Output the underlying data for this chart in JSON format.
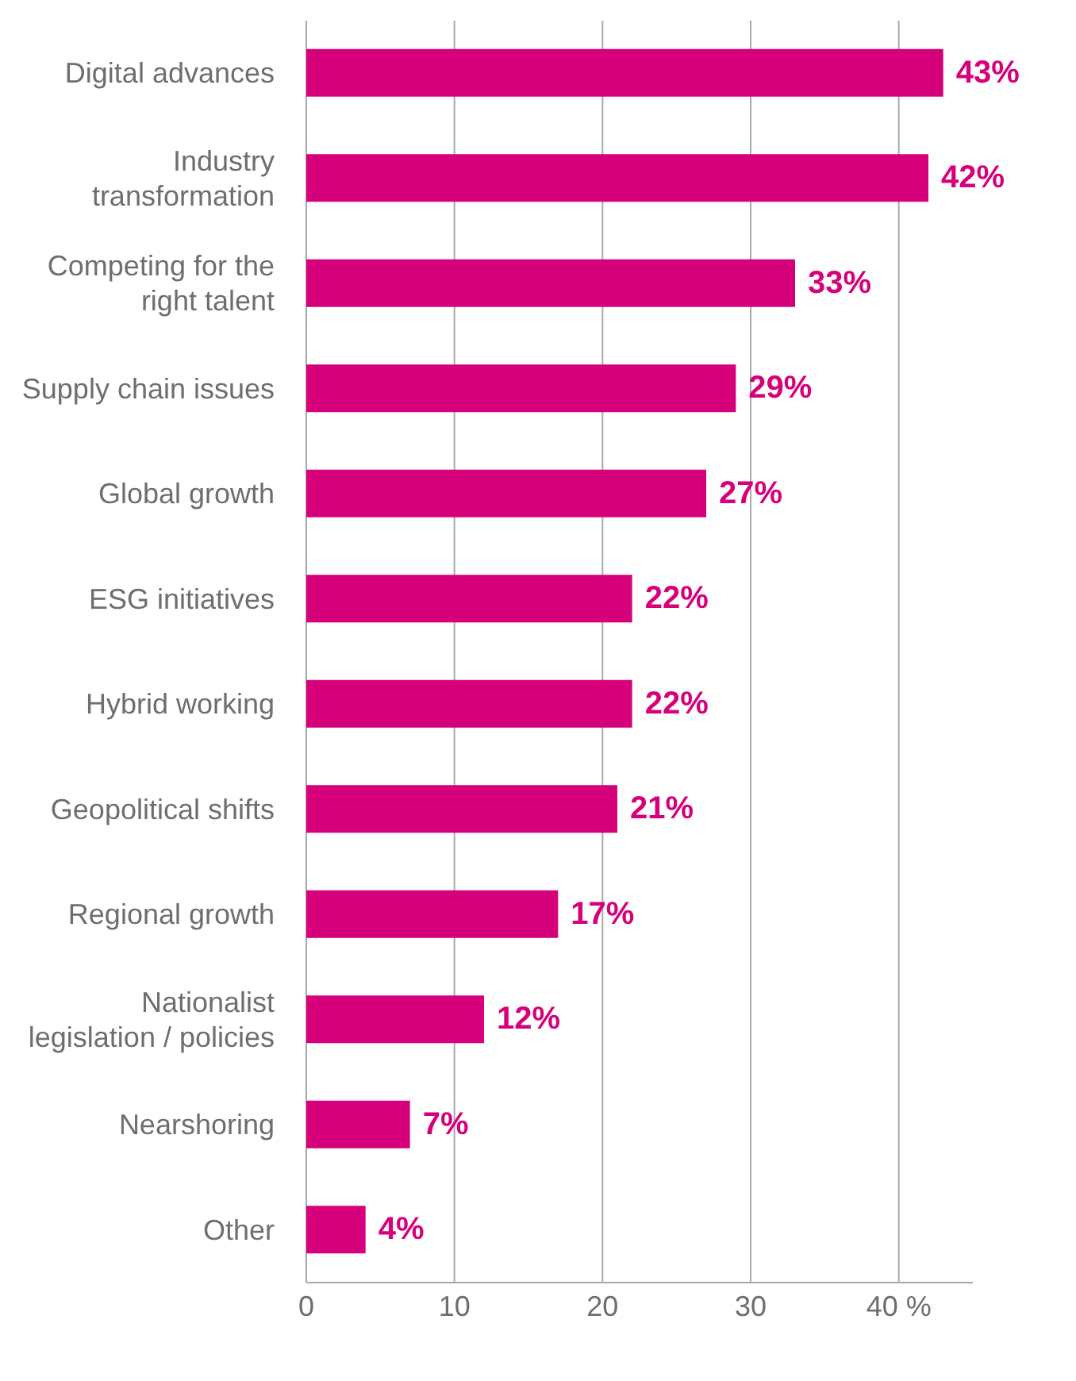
{
  "chart_data": {
    "type": "bar",
    "orientation": "horizontal",
    "categories": [
      "Digital advances",
      "Industry transformation",
      "Competing for the right talent",
      "Supply chain issues",
      "Global growth",
      "ESG initiatives",
      "Hybrid working",
      "Geopolitical shifts",
      "Regional growth",
      "Nationalist legislation / policies",
      "Nearshoring",
      "Other"
    ],
    "values": [
      43,
      42,
      33,
      29,
      27,
      22,
      22,
      21,
      17,
      12,
      7,
      4
    ],
    "value_labels": [
      "43%",
      "42%",
      "33%",
      "29%",
      "27%",
      "22%",
      "22%",
      "21%",
      "17%",
      "12%",
      "7%",
      "4%"
    ],
    "color": "#d6007a",
    "xlim": [
      0,
      45
    ],
    "xticks": [
      0,
      10,
      20,
      30,
      {
        "value": 40,
        "label": "40 %"
      }
    ],
    "grid": "x"
  }
}
